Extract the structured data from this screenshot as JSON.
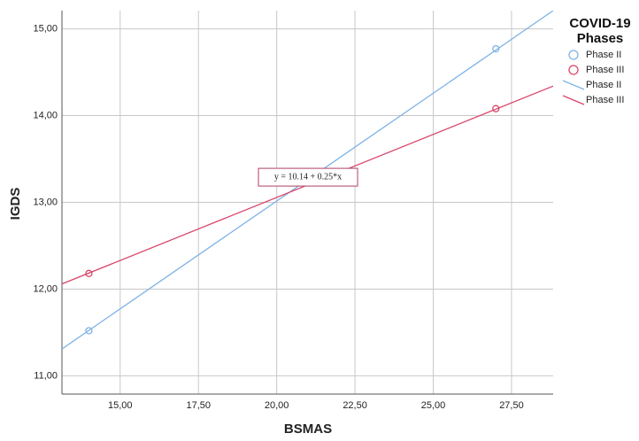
{
  "chart_data": {
    "type": "scatter",
    "x_label": "BSMAS",
    "y_label": "IGDS",
    "legend_title": "COVID-19 Phases",
    "legend_position": "right",
    "grid": true,
    "xlim": [
      13.14,
      28.83
    ],
    "ylim": [
      10.79,
      15.21
    ],
    "xticks": [
      {
        "value": 15,
        "label": "15,00"
      },
      {
        "value": 17.5,
        "label": "17,50"
      },
      {
        "value": 20,
        "label": "20,00"
      },
      {
        "value": 22.5,
        "label": "22,50"
      },
      {
        "value": 25,
        "label": "25,00"
      },
      {
        "value": 27.5,
        "label": "27,50"
      }
    ],
    "yticks": [
      {
        "value": 11,
        "label": "11,00"
      },
      {
        "value": 12,
        "label": "12,00"
      },
      {
        "value": 13,
        "label": "13,00"
      },
      {
        "value": 14,
        "label": "14,00"
      },
      {
        "value": 15,
        "label": "15,00"
      }
    ],
    "series": [
      {
        "name": "Phase II",
        "kind": "scatter",
        "color": "#7fb3e6",
        "x": [
          14,
          27
        ],
        "values": [
          11.52,
          14.77
        ]
      },
      {
        "name": "Phase III",
        "kind": "scatter",
        "color": "#d9476b",
        "x": [
          14,
          27
        ],
        "values": [
          12.18,
          14.08
        ]
      },
      {
        "name": "Phase II",
        "kind": "line",
        "color": "#7fb3e6",
        "x": [
          13.14,
          28.83
        ],
        "values": [
          11.31,
          15.21
        ]
      },
      {
        "name": "Phase III",
        "kind": "line",
        "color": "#d9476b",
        "x": [
          13.14,
          28.83
        ],
        "values": [
          12.06,
          14.34
        ]
      }
    ],
    "annotation": {
      "text": "y = 10.14 + 0.25*x",
      "x": 21,
      "y": 13.29
    }
  }
}
